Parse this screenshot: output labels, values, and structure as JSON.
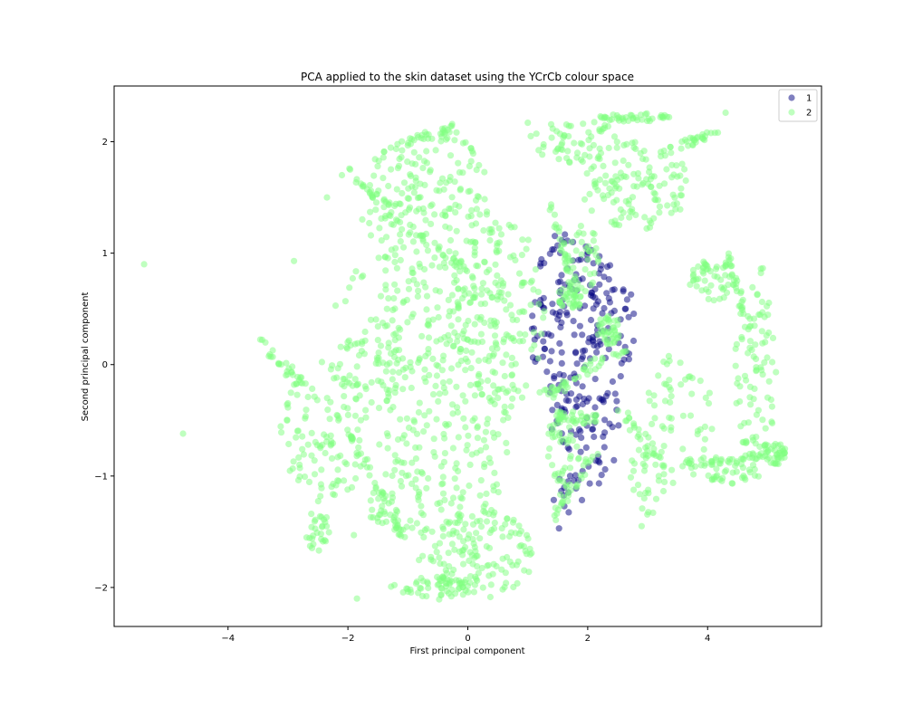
{
  "chart_data": {
    "type": "scatter",
    "title": "PCA applied to the skin dataset using the YCrCb colour space",
    "xlabel": "First principal component",
    "ylabel": "Second principal component",
    "xlim": [
      -5.9,
      5.9
    ],
    "ylim": [
      -2.35,
      2.5
    ],
    "x_ticks": [
      -4,
      -2,
      0,
      2,
      4
    ],
    "y_ticks": [
      -2,
      -1,
      0,
      1,
      2
    ],
    "x_tick_labels": [
      "−4",
      "−2",
      "0",
      "2",
      "4"
    ],
    "y_tick_labels": [
      "−2",
      "−1",
      "0",
      "1",
      "2"
    ],
    "grid": false,
    "legend_position": "top-right",
    "point_alpha": 0.5,
    "series": [
      {
        "name": "1",
        "color": "#000080",
        "regions": [
          {
            "shape": "polygon",
            "density": 260,
            "vertices": [
              [
                1.05,
                1.28
              ],
              [
                1.3,
                1.32
              ],
              [
                1.6,
                1.22
              ],
              [
                2.0,
                1.1
              ],
              [
                2.35,
                0.95
              ],
              [
                2.7,
                0.7
              ],
              [
                2.85,
                0.45
              ],
              [
                2.75,
                0.1
              ],
              [
                2.5,
                -0.3
              ],
              [
                2.55,
                -0.6
              ],
              [
                2.45,
                -0.95
              ],
              [
                2.25,
                -1.1
              ],
              [
                1.95,
                -1.25
              ],
              [
                1.7,
                -1.35
              ],
              [
                1.45,
                -1.55
              ],
              [
                1.3,
                -1.65
              ],
              [
                1.25,
                -1.45
              ],
              [
                1.45,
                -1.0
              ],
              [
                1.35,
                -0.5
              ],
              [
                1.15,
                -0.2
              ],
              [
                1.05,
                0.2
              ],
              [
                1.1,
                0.7
              ]
            ]
          }
        ]
      },
      {
        "name": "2",
        "color": "#7fff7f",
        "regions": [
          {
            "shape": "ellipse",
            "cx": -0.4,
            "cy": 0.0,
            "rx": 1.15,
            "ry": 2.15,
            "density": 520
          },
          {
            "shape": "ellipse",
            "cx": 0.5,
            "cy": 0.45,
            "rx": 0.8,
            "ry": 0.9,
            "density": 140
          },
          {
            "shape": "ellipse",
            "cx": 0.2,
            "cy": -1.7,
            "rx": 0.9,
            "ry": 0.4,
            "density": 120
          },
          {
            "shape": "ellipse",
            "cx": -0.6,
            "cy": -2.0,
            "rx": 0.7,
            "ry": 0.1,
            "density": 40
          },
          {
            "shape": "ellipse",
            "cx": -1.2,
            "cy": 1.4,
            "rx": 0.6,
            "ry": 0.55,
            "density": 60
          },
          {
            "shape": "ellipse",
            "cx": -1.7,
            "cy": 0.15,
            "rx": 0.6,
            "ry": 0.75,
            "density": 60
          },
          {
            "shape": "ellipse",
            "cx": -2.4,
            "cy": -0.6,
            "rx": 0.75,
            "ry": 0.65,
            "density": 110
          },
          {
            "shape": "ellipse",
            "cx": -2.5,
            "cy": -1.5,
            "rx": 0.2,
            "ry": 0.2,
            "density": 28
          },
          {
            "shape": "ellipse",
            "cx": -1.5,
            "cy": -1.25,
            "rx": 0.3,
            "ry": 0.2,
            "density": 24
          },
          {
            "shape": "ellipse",
            "cx": 2.8,
            "cy": 1.6,
            "rx": 0.9,
            "ry": 0.4,
            "density": 120
          },
          {
            "shape": "ellipse",
            "cx": 2.8,
            "cy": 2.22,
            "rx": 0.6,
            "ry": 0.04,
            "density": 40
          },
          {
            "shape": "ellipse",
            "cx": 1.8,
            "cy": 2.0,
            "rx": 0.8,
            "ry": 0.2,
            "density": 60
          },
          {
            "shape": "ellipse",
            "cx": 4.1,
            "cy": 0.75,
            "rx": 0.4,
            "ry": 0.2,
            "density": 50
          },
          {
            "shape": "ellipse",
            "cx": 4.8,
            "cy": 0.0,
            "rx": 0.35,
            "ry": 0.95,
            "density": 80
          },
          {
            "shape": "ellipse",
            "cx": 3.5,
            "cy": -0.5,
            "rx": 0.6,
            "ry": 0.6,
            "density": 60
          },
          {
            "shape": "ellipse",
            "cx": 5.1,
            "cy": -0.8,
            "rx": 0.25,
            "ry": 0.1,
            "density": 40
          },
          {
            "shape": "ellipse",
            "cx": 4.4,
            "cy": -0.95,
            "rx": 0.5,
            "ry": 0.12,
            "density": 40
          },
          {
            "shape": "ellipse",
            "cx": 3.0,
            "cy": -1.0,
            "rx": 0.3,
            "ry": 0.35,
            "density": 30
          },
          {
            "shape": "ellipse",
            "cx": 1.7,
            "cy": 0.6,
            "rx": 0.2,
            "ry": 0.12,
            "density": 40
          },
          {
            "shape": "ellipse",
            "cx": 2.35,
            "cy": 0.3,
            "rx": 0.2,
            "ry": 0.15,
            "density": 40
          },
          {
            "shape": "ellipse",
            "cx": 1.6,
            "cy": -0.8,
            "rx": 0.3,
            "ry": 0.4,
            "density": 50
          },
          {
            "shape": "ellipse",
            "cx": 1.9,
            "cy": 0.95,
            "rx": 0.35,
            "ry": 0.3,
            "density": 40
          }
        ],
        "strands": [
          {
            "from": [
              -2.2,
              1.8
            ],
            "to": [
              0.0,
              0.8
            ],
            "count": 45,
            "spread": 0.06
          },
          {
            "from": [
              -1.3,
              1.95
            ],
            "to": [
              -0.2,
              2.15
            ],
            "count": 25,
            "spread": 0.04
          },
          {
            "from": [
              -3.5,
              0.2
            ],
            "to": [
              -2.5,
              -0.3
            ],
            "count": 30,
            "spread": 0.06
          },
          {
            "from": [
              -2.0,
              -0.6
            ],
            "to": [
              -1.0,
              -1.6
            ],
            "count": 40,
            "spread": 0.05
          },
          {
            "from": [
              1.25,
              -0.3
            ],
            "to": [
              2.6,
              0.15
            ],
            "count": 45,
            "spread": 0.06
          },
          {
            "from": [
              1.5,
              -0.45
            ],
            "to": [
              2.2,
              -0.5
            ],
            "count": 30,
            "spread": 0.05
          },
          {
            "from": [
              1.4,
              -1.4
            ],
            "to": [
              2.2,
              -0.7
            ],
            "count": 25,
            "spread": 0.05
          },
          {
            "from": [
              3.2,
              1.9
            ],
            "to": [
              4.2,
              2.1
            ],
            "count": 30,
            "spread": 0.04
          },
          {
            "from": [
              4.3,
              1.0
            ],
            "to": [
              4.9,
              -0.1
            ],
            "count": 35,
            "spread": 0.05
          },
          {
            "from": [
              3.5,
              -0.9
            ],
            "to": [
              5.0,
              -0.8
            ],
            "count": 30,
            "spread": 0.04
          },
          {
            "from": [
              1.4,
              1.4
            ],
            "to": [
              1.8,
              0.7
            ],
            "count": 25,
            "spread": 0.05
          },
          {
            "from": [
              2.5,
              -0.4
            ],
            "to": [
              3.3,
              -0.9
            ],
            "count": 25,
            "spread": 0.06
          }
        ],
        "isolated_points": [
          [
            -5.4,
            0.9
          ],
          [
            -4.75,
            -0.62
          ],
          [
            -2.9,
            0.93
          ],
          [
            -1.85,
            -2.1
          ],
          [
            -2.35,
            1.5
          ],
          [
            1.0,
            2.17
          ],
          [
            4.3,
            2.26
          ],
          [
            2.9,
            -1.45
          ],
          [
            -1.9,
            -1.53
          ],
          [
            -2.1,
            1.7
          ]
        ]
      }
    ]
  }
}
